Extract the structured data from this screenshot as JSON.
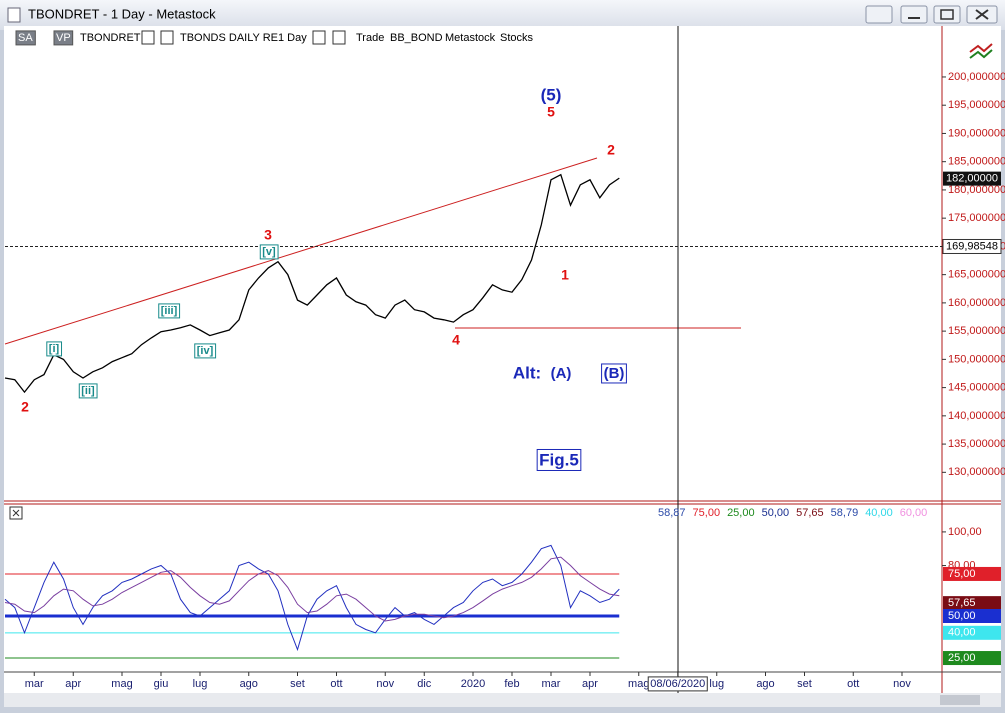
{
  "window": {
    "title": "TBONDRET - 1 Day - Metastock",
    "toolbar": [
      "SA",
      "VP",
      "TBONDRET",
      "TBONDS DAILY RE",
      "1 Day",
      "Trade",
      "BB_BOND",
      "Metastock",
      "Stocks"
    ]
  },
  "chart_data": [
    {
      "type": "line",
      "color": "#000000",
      "categories": [
        null,
        null,
        null,
        "mar",
        null,
        null,
        null,
        "apr",
        null,
        null,
        null,
        null,
        "mag",
        null,
        null,
        null,
        "giu",
        null,
        null,
        null,
        "lug",
        null,
        null,
        null,
        null,
        "ago",
        null,
        null,
        null,
        null,
        "set",
        null,
        null,
        null,
        "ott",
        null,
        null,
        null,
        null,
        "nov",
        null,
        null,
        null,
        "dic",
        null,
        null,
        null,
        null,
        "2020",
        null,
        null,
        null,
        "feb",
        null,
        null,
        null,
        "mar",
        null,
        null,
        null,
        "apr",
        null,
        null,
        null,
        null,
        "mag",
        null,
        null,
        null,
        "08/06/2020",
        null,
        null,
        null,
        "lug",
        null,
        null,
        null,
        null,
        "ago",
        null,
        null,
        null,
        "set",
        null,
        null,
        null,
        null,
        "ott",
        null,
        null,
        null,
        null,
        "nov",
        null,
        null,
        null
      ],
      "values": [
        146.7,
        146.4,
        144.2,
        146.4,
        147.3,
        150.8,
        150,
        147.8,
        146.7,
        147.8,
        148.5,
        149.6,
        150.3,
        151,
        152.6,
        153.8,
        154.9,
        155.2,
        155.6,
        156.1,
        155.2,
        154.2,
        154.7,
        155.2,
        157,
        162.3,
        164.4,
        166.2,
        167.3,
        165,
        160.5,
        159.6,
        161.4,
        163.2,
        164.4,
        161.4,
        160.2,
        159.6,
        157.9,
        157.3,
        159.6,
        160.5,
        158.8,
        158.4,
        157.3,
        157,
        156.6,
        157.9,
        158.8,
        160.9,
        163.2,
        162.3,
        161.9,
        164.1,
        167.6,
        173.8,
        181.8,
        182.7,
        177.3,
        180.9,
        181.8,
        178.6,
        180.9,
        182.1,
        null,
        null,
        null,
        null,
        null,
        null,
        null,
        null,
        null,
        null,
        null,
        null,
        null,
        null,
        null,
        null,
        null,
        null,
        null,
        null,
        null,
        null,
        null,
        null,
        null,
        null,
        null,
        null,
        null,
        null,
        null,
        null
      ],
      "ylim": [
        125.1,
        209.2
      ],
      "yticks": [
        {
          "value": 200,
          "label": "200,000000"
        },
        {
          "value": 195,
          "label": "195,000000"
        },
        {
          "value": 190,
          "label": "190,000000"
        },
        {
          "value": 185,
          "label": "185,000000"
        },
        {
          "value": 180,
          "label": "180,000000"
        },
        {
          "value": 175,
          "label": "175,000000"
        },
        {
          "value": 170,
          "label": "170,000000"
        },
        {
          "value": 165,
          "label": "165,000000"
        },
        {
          "value": 160,
          "label": "160,000000"
        },
        {
          "value": 155,
          "label": "155,000000"
        },
        {
          "value": 150,
          "label": "150,000000"
        },
        {
          "value": 145,
          "label": "145,000000"
        },
        {
          "value": 140,
          "label": "140,000000"
        },
        {
          "value": 135,
          "label": "135,000000"
        },
        {
          "value": 130,
          "label": "130,000000"
        }
      ],
      "last": {
        "value": 182,
        "label": "182,00000"
      },
      "crosshair": {
        "value": 169.98548,
        "label": "169,98548"
      },
      "annotations": [
        {
          "text": "(5)",
          "color": "#1a28b8",
          "boxed": false
        },
        {
          "text": "5",
          "color": "#e01010",
          "boxed": false
        },
        {
          "text": "2",
          "color": "#e01010",
          "boxed": false
        },
        {
          "text": "3",
          "color": "#e01010",
          "boxed": false
        },
        {
          "text": "[v]",
          "color": "#178a8a",
          "boxed": true
        },
        {
          "text": "[iii]",
          "color": "#178a8a",
          "boxed": true
        },
        {
          "text": "[i]",
          "color": "#178a8a",
          "boxed": true
        },
        {
          "text": "[ii]",
          "color": "#178a8a",
          "boxed": true
        },
        {
          "text": "[iv]",
          "color": "#178a8a",
          "boxed": true
        },
        {
          "text": "2",
          "color": "#e01010",
          "boxed": false
        },
        {
          "text": "4",
          "color": "#e01010",
          "boxed": false
        },
        {
          "text": "1",
          "color": "#e01010",
          "boxed": false
        },
        {
          "text": "Alt:",
          "color": "#1a28b8",
          "boxed": false
        },
        {
          "text": "(A)",
          "color": "#1a28b8",
          "boxed": false
        },
        {
          "text": "(B)",
          "color": "#1a28b8",
          "boxed": true
        },
        {
          "text": "Fig.5",
          "color": "#1a28b8",
          "boxed": true
        }
      ]
    },
    {
      "type": "line",
      "series": [
        {
          "color": "#2230c0",
          "values": [
            60,
            55,
            40,
            55,
            70,
            82,
            72,
            55,
            45,
            55,
            62,
            65,
            70,
            72,
            75,
            78,
            80,
            75,
            60,
            52,
            50,
            55,
            60,
            65,
            80,
            82,
            78,
            75,
            65,
            45,
            30,
            50,
            60,
            65,
            68,
            55,
            45,
            42,
            40,
            48,
            55,
            50,
            52,
            48,
            45,
            50,
            55,
            58,
            65,
            70,
            72,
            68,
            70,
            75,
            82,
            90,
            92,
            80,
            55,
            65,
            62,
            58,
            60,
            66,
            null,
            null,
            null,
            null,
            null,
            null,
            null,
            null,
            null,
            null,
            null,
            null,
            null,
            null,
            null,
            null,
            null,
            null,
            null,
            null,
            null,
            null,
            null,
            null,
            null,
            null,
            null,
            null,
            null,
            null,
            null,
            null
          ]
        },
        {
          "color": "#7a3fa0",
          "values": [
            58,
            57,
            53,
            52,
            56,
            62,
            66,
            65,
            60,
            56,
            57,
            60,
            64,
            67,
            70,
            73,
            76,
            77,
            73,
            67,
            62,
            58,
            57,
            59,
            65,
            71,
            75,
            77,
            74,
            67,
            57,
            52,
            53,
            57,
            62,
            63,
            60,
            55,
            50,
            47,
            48,
            50,
            51,
            51,
            50,
            49,
            50,
            52,
            55,
            59,
            63,
            66,
            68,
            70,
            73,
            78,
            84,
            85,
            80,
            74,
            70,
            66,
            63,
            62,
            null,
            null,
            null,
            null,
            null,
            null,
            null,
            null,
            null,
            null,
            null,
            null,
            null,
            null,
            null,
            null,
            null,
            null,
            null,
            null,
            null,
            null,
            null,
            null,
            null,
            null,
            null,
            null,
            null,
            null,
            null,
            null
          ]
        }
      ],
      "ylim": [
        16.7,
        116
      ],
      "yticks": [
        {
          "value": 100,
          "label": "100,00"
        },
        {
          "value": 80,
          "label": "80,00"
        }
      ],
      "levels": [
        {
          "value": 75,
          "label": "75,00",
          "color": "#e0202a"
        },
        {
          "value": 57.65,
          "label": "57,65",
          "color": "#7a0c14"
        },
        {
          "value": 50,
          "label": "50,00",
          "color": "#1a2fd0"
        },
        {
          "value": 40,
          "label": "40,00",
          "color": "#3ee6ee"
        },
        {
          "value": 25,
          "label": "25,00",
          "color": "#1e8a1e"
        }
      ],
      "readouts": [
        {
          "value": 58.87,
          "label": "58,87",
          "color": "#2b4aa8"
        },
        {
          "value": 75,
          "label": "75,00",
          "color": "#e0202a"
        },
        {
          "value": 25,
          "label": "25,00",
          "color": "#1e8a1e"
        },
        {
          "value": 50,
          "label": "50,00",
          "color": "#1a2f90"
        },
        {
          "value": 57.65,
          "label": "57,65",
          "color": "#7a0c14"
        },
        {
          "value": 58.79,
          "label": "58,79",
          "color": "#2b4aa8"
        },
        {
          "value": 40,
          "label": "40,00",
          "color": "#30d8e8"
        },
        {
          "value": 60,
          "label": "60,00",
          "color": "#f090e0"
        }
      ]
    }
  ]
}
